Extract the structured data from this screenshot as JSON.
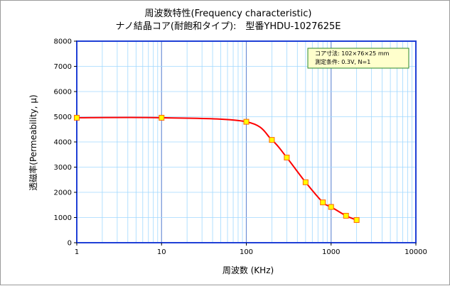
{
  "chart_data": {
    "type": "line",
    "title_line1": "周波数特性(Frequency characteristic)",
    "title_line2": "ナノ結晶コア(耐飽和タイプ):　型番YHDU-1027625E",
    "xlabel": "周波数 (KHz)",
    "ylabel": "透磁率(Permeability, μ)",
    "x_scale": "log",
    "xlim": [
      1,
      10000
    ],
    "ylim": [
      0,
      8000
    ],
    "x_tick_labels": [
      "1",
      "10",
      "100",
      "1000",
      "10000"
    ],
    "y_tick_labels": [
      "0",
      "1000",
      "2000",
      "3000",
      "4000",
      "5000",
      "6000",
      "7000",
      "8000"
    ],
    "grid": true,
    "annotation": [
      "コア寸法:  102×76×25 mm",
      "測定条件:  0.3V, N=1"
    ],
    "annotation_placement": "top-right",
    "series": [
      {
        "x": [
          1,
          10,
          100,
          200,
          300,
          500,
          800,
          1000,
          1500,
          2000
        ],
        "y": [
          4960,
          4960,
          4800,
          4080,
          3380,
          2400,
          1600,
          1420,
          1070,
          900
        ]
      }
    ],
    "colors": {
      "line": "#ff0000",
      "marker_fill": "#ffff00",
      "marker_edge": "#ff6600",
      "axis": "#0000cc",
      "minor_grid": "#a0d8ff",
      "decade_grid": "#6f8fd6",
      "plot_border": "#1f3fd6",
      "note_bg": "#ffffcc",
      "note_border": "#2a8a2a"
    }
  }
}
